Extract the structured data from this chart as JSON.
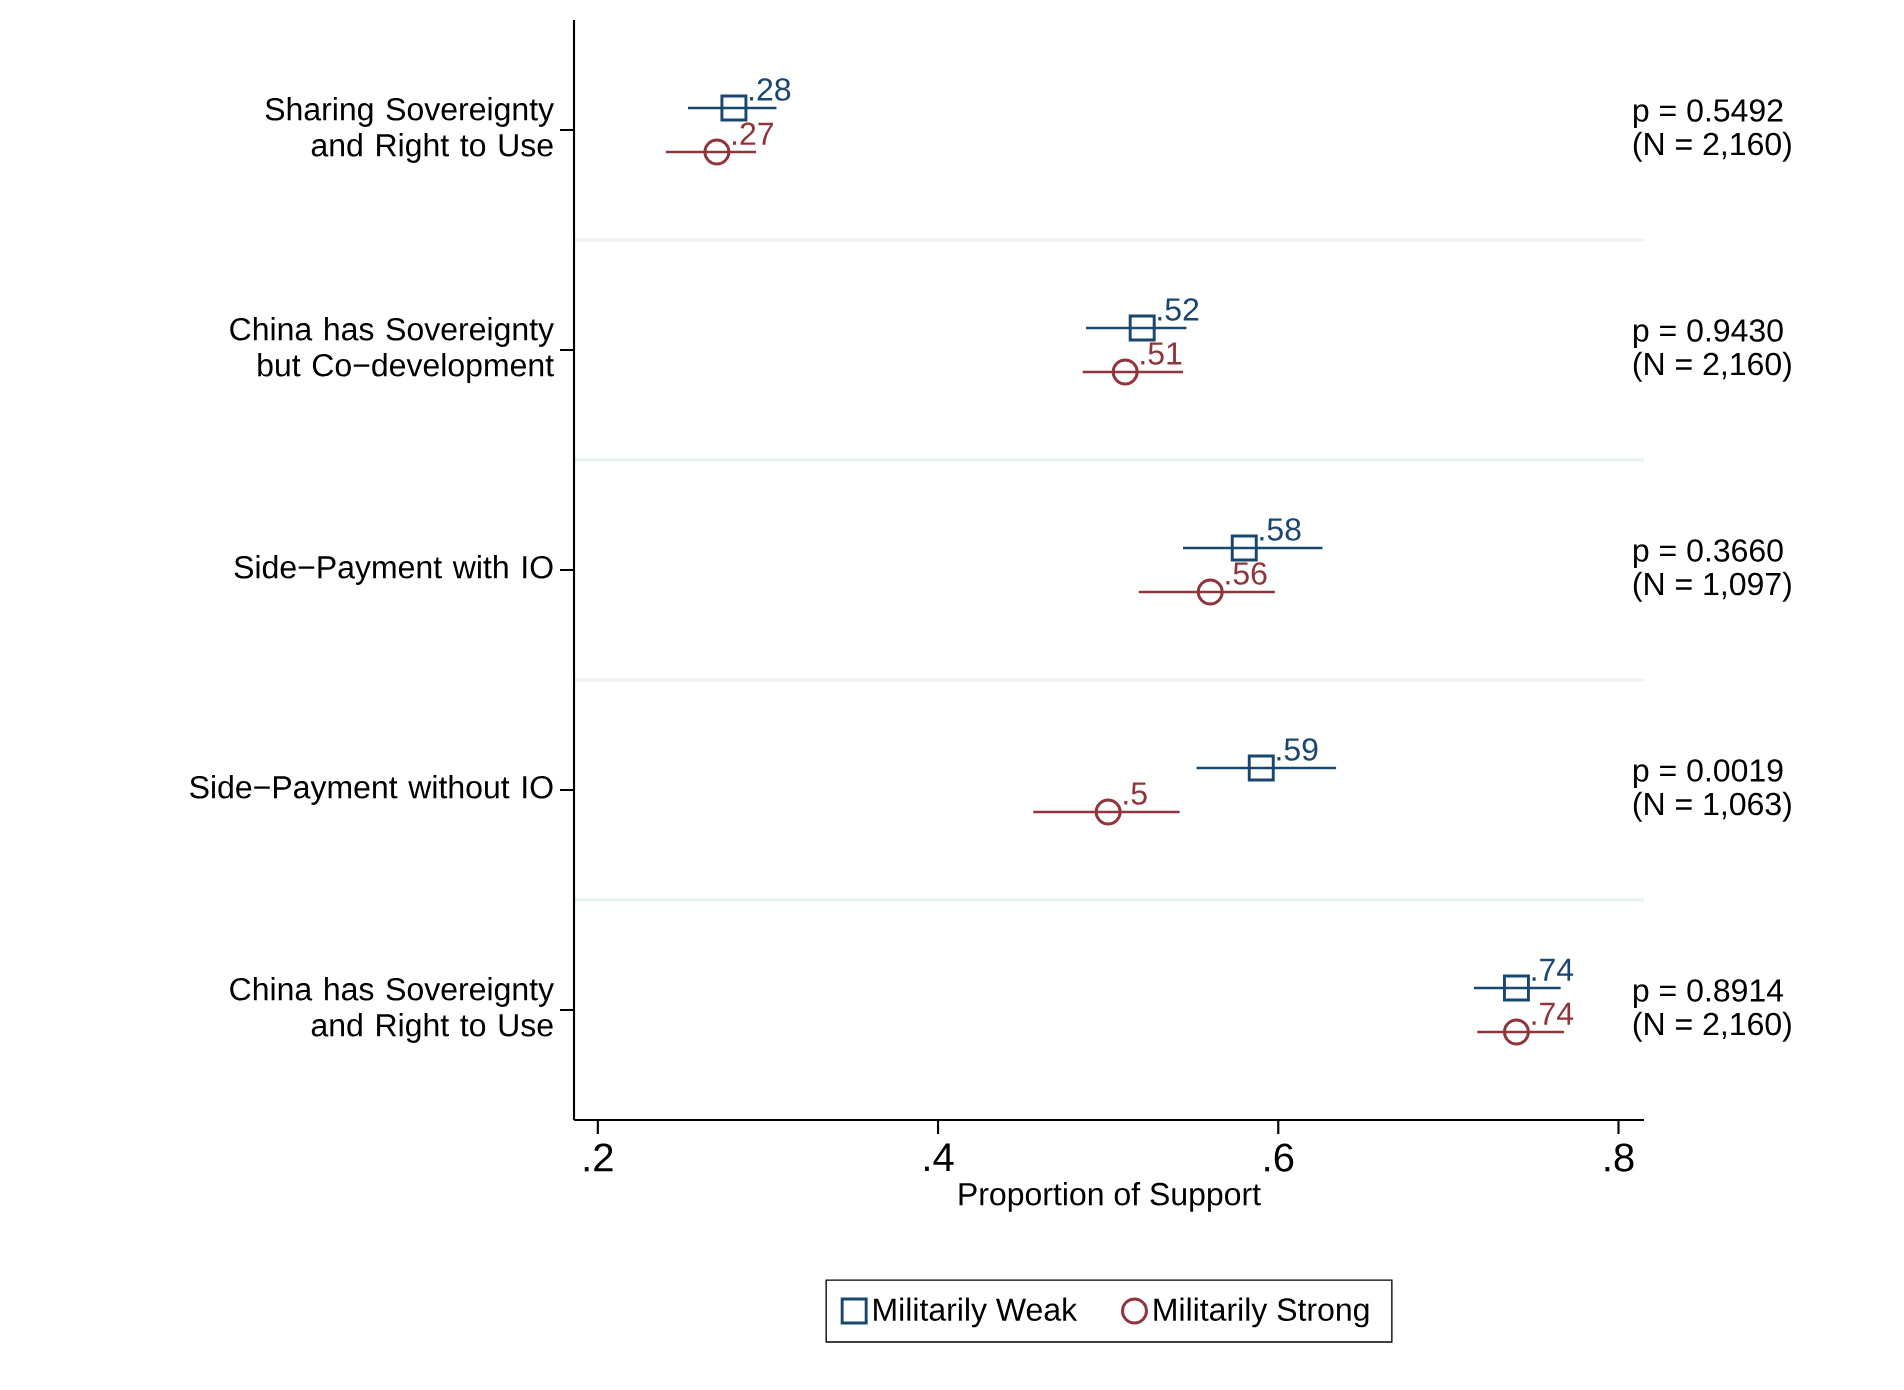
{
  "chart_data": {
    "type": "scatter",
    "orientation": "horizontal",
    "categories": [
      "Sharing Sovereignty and Right to Use",
      "China has Sovereignty but Co−development",
      "Side−Payment with IO",
      "Side−Payment without IO",
      "China has Sovereignty and Right to Use"
    ],
    "series": [
      {
        "name": "Militarily Weak",
        "color": "#1a476f",
        "marker": "square",
        "values": [
          0.28,
          0.52,
          0.58,
          0.59,
          0.74
        ],
        "errors": [
          [
            0.253,
            0.305
          ],
          [
            0.487,
            0.546
          ],
          [
            0.544,
            0.626
          ],
          [
            0.552,
            0.634
          ],
          [
            0.715,
            0.766
          ]
        ],
        "value_labels": [
          ".28",
          ".52",
          ".58",
          ".59",
          ".74"
        ]
      },
      {
        "name": "Militarily Strong",
        "color": "#90353b",
        "marker": "circle",
        "values": [
          0.27,
          0.51,
          0.56,
          0.5,
          0.74
        ],
        "errors": [
          [
            0.24,
            0.293
          ],
          [
            0.485,
            0.544
          ],
          [
            0.518,
            0.598
          ],
          [
            0.456,
            0.542
          ],
          [
            0.717,
            0.768
          ]
        ],
        "value_labels": [
          ".27",
          ".51",
          ".56",
          ".5",
          ".74"
        ]
      }
    ],
    "xlabel": "Proportion of Support",
    "xlim": [
      0.186,
      0.815
    ],
    "xticks": [
      {
        "value": 0.2,
        "label": ".2"
      },
      {
        "value": 0.4,
        "label": ".4"
      },
      {
        "value": 0.6,
        "label": ".6"
      },
      {
        "value": 0.8,
        "label": ".8"
      }
    ],
    "grid": "y",
    "legend": "bottom",
    "annotations": [
      "p = 0.5492",
      "(N = 2,160)",
      "p = 0.9430",
      "(N = 2,160)",
      "p = 0.3660",
      "(N = 1,097)",
      "p = 0.0019",
      "(N = 1,063)",
      "p = 0.8914",
      "(N = 2,160)"
    ]
  }
}
